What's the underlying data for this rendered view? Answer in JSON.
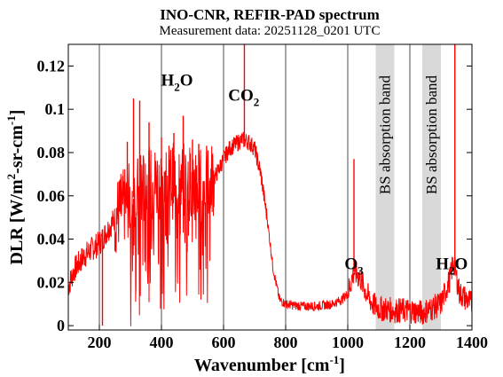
{
  "chart_data": {
    "type": "line",
    "title": "INO-CNR, REFIR-PAD spectrum",
    "subtitle": "Measurement data: 20251128_0201 UTC",
    "xlabel": {
      "main": "Wavenumber [cm",
      "sup": "-1",
      "close": "]"
    },
    "ylabel": {
      "p1": "DLR [W/m",
      "sup1": "2",
      "p2": "-sr-cm",
      "sup2": "-1",
      "p3": "]"
    },
    "xlim": [
      100,
      1400
    ],
    "ylim": [
      -0.002,
      0.13
    ],
    "xticks": [
      200,
      400,
      600,
      800,
      1000,
      1200,
      1400
    ],
    "xtick_labels": [
      "200",
      "400",
      "600",
      "800",
      "1000",
      "1200",
      "1400"
    ],
    "yticks": [
      0,
      0.02,
      0.04,
      0.06,
      0.08,
      0.1,
      0.12
    ],
    "ytick_labels": [
      "0",
      "0.02",
      "0.04",
      "0.06",
      "0.08",
      "0.1",
      "0.12"
    ],
    "grid": "x-only",
    "line_color": "#ff0000",
    "band_color": "#d9d9d9",
    "bands": [
      {
        "range": [
          1090,
          1150
        ],
        "label": "BS absorption band"
      },
      {
        "range": [
          1240,
          1300
        ],
        "label": "BS absorption band"
      }
    ],
    "annotations": [
      {
        "base": "H",
        "sub": "2",
        "tail": "O",
        "x": 450,
        "y": 0.111
      },
      {
        "base": "CO",
        "sub": "2",
        "tail": "",
        "x": 665,
        "y": 0.104
      },
      {
        "base": "O",
        "sub": "3",
        "tail": "",
        "x": 1020,
        "y": 0.026
      },
      {
        "base": "H",
        "sub": "2",
        "tail": "O",
        "x": 1335,
        "y": 0.026
      }
    ],
    "envelope": {
      "x": [
        100,
        120,
        150,
        180,
        200,
        230,
        260,
        300,
        340,
        380,
        420,
        460,
        500,
        540,
        570,
        600,
        620,
        640,
        660,
        680,
        700,
        720,
        740,
        760,
        780,
        800,
        850,
        900,
        950,
        980,
        1000,
        1020,
        1040,
        1060,
        1080,
        1100,
        1150,
        1200,
        1240,
        1300,
        1330,
        1340,
        1360,
        1400
      ],
      "y": [
        0.018,
        0.026,
        0.032,
        0.036,
        0.038,
        0.045,
        0.052,
        0.058,
        0.063,
        0.066,
        0.067,
        0.067,
        0.066,
        0.065,
        0.068,
        0.077,
        0.082,
        0.084,
        0.086,
        0.085,
        0.082,
        0.07,
        0.05,
        0.026,
        0.012,
        0.01,
        0.009,
        0.009,
        0.01,
        0.012,
        0.015,
        0.025,
        0.022,
        0.015,
        0.01,
        0.008,
        0.007,
        0.007,
        0.006,
        0.01,
        0.022,
        0.03,
        0.015,
        0.01
      ]
    },
    "spikes": [
      {
        "x": 210,
        "y": 0.0
      },
      {
        "x": 290,
        "y": 0.085
      },
      {
        "x": 310,
        "y": 0.105
      },
      {
        "x": 330,
        "y": 0.104
      },
      {
        "x": 360,
        "y": 0.094
      },
      {
        "x": 400,
        "y": 0.087
      },
      {
        "x": 440,
        "y": 0.089
      },
      {
        "x": 470,
        "y": 0.097
      },
      {
        "x": 500,
        "y": 0.086
      },
      {
        "x": 520,
        "y": 0.084
      },
      {
        "x": 667,
        "y": 0.13
      },
      {
        "x": 1020,
        "y": 0.077
      },
      {
        "x": 1345,
        "y": 0.13
      }
    ]
  }
}
